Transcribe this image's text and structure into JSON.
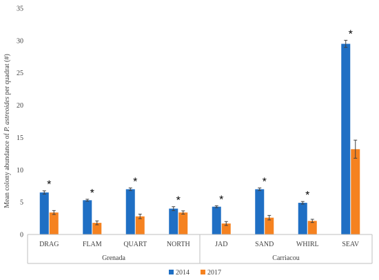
{
  "chart_data": {
    "type": "bar",
    "ylabel_prefix": "Mean colony abundance of ",
    "ylabel_species": "P. astreoides",
    "ylabel_suffix": " per quadrat (#)",
    "ylim": [
      0,
      35
    ],
    "yticks": [
      0,
      5,
      10,
      15,
      20,
      25,
      30,
      35
    ],
    "categories": [
      "DRAG",
      "FLAM",
      "QUART",
      "NORTH",
      "JAD",
      "SAND",
      "WHIRL",
      "SEAV"
    ],
    "groups": [
      {
        "name": "Grenada",
        "categories": [
          "DRAG",
          "FLAM",
          "QUART",
          "NORTH"
        ]
      },
      {
        "name": "Carriacou",
        "categories": [
          "JAD",
          "SAND",
          "WHIRL",
          "SEAV"
        ]
      }
    ],
    "series": [
      {
        "name": "2014",
        "color": "#1f6fc4",
        "values": [
          6.5,
          5.3,
          7.0,
          4.0,
          4.3,
          7.0,
          4.9,
          29.5
        ],
        "errors": [
          0.25,
          0.15,
          0.2,
          0.3,
          0.15,
          0.2,
          0.2,
          0.55
        ]
      },
      {
        "name": "2017",
        "color": "#f58220",
        "values": [
          3.4,
          1.8,
          2.8,
          3.4,
          1.7,
          2.6,
          2.1,
          13.2
        ],
        "errors": [
          0.3,
          0.3,
          0.35,
          0.25,
          0.3,
          0.35,
          0.25,
          1.4
        ]
      }
    ],
    "significance_marker": "*",
    "significant": [
      true,
      true,
      true,
      true,
      true,
      true,
      true,
      true
    ],
    "legend_position": "bottom",
    "grid": false
  }
}
